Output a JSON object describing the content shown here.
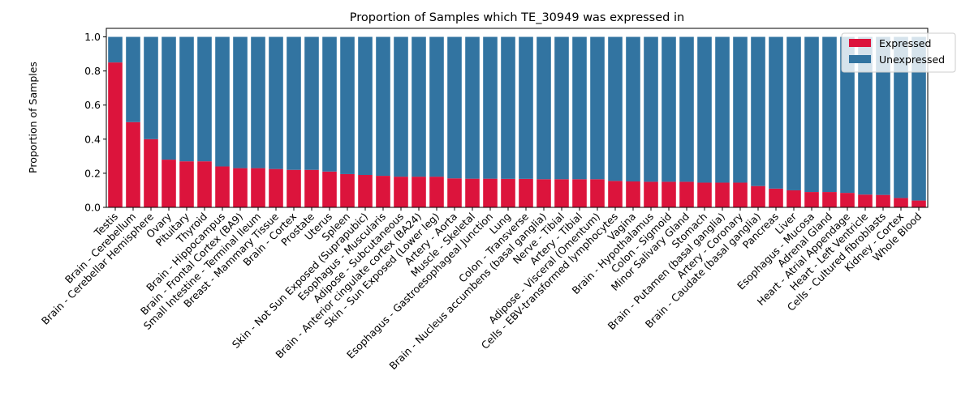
{
  "chart_data": {
    "type": "bar",
    "stacked": true,
    "title": "Proportion of Samples which TE_30949 was expressed in",
    "xlabel": "",
    "ylabel": "Proportion of Samples",
    "ylim": [
      0,
      1.05
    ],
    "yticks": [
      0.0,
      0.2,
      0.4,
      0.6,
      0.8,
      1.0
    ],
    "ytick_labels": [
      "0.0",
      "0.2",
      "0.4",
      "0.6",
      "0.8",
      "1.0"
    ],
    "grid": false,
    "legend_position": "top-right",
    "categories": [
      "Testis",
      "Brain - Cerebellum",
      "Brain - Cerebellar Hemisphere",
      "Ovary",
      "Pituitary",
      "Thyroid",
      "Brain - Hippocampus",
      "Brain - Frontal Cortex (BA9)",
      "Small Intestine - Terminal Ileum",
      "Breast - Mammary Tissue",
      "Brain - Cortex",
      "Prostate",
      "Uterus",
      "Spleen",
      "Skin - Not Sun Exposed (Suprapubic)",
      "Esophagus - Muscularis",
      "Adipose - Subcutaneous",
      "Brain - Anterior cingulate cortex (BA24)",
      "Skin - Sun Exposed (Lower leg)",
      "Artery - Aorta",
      "Muscle - Skeletal",
      "Esophagus - Gastroesophageal Junction",
      "Lung",
      "Colon - Transverse",
      "Brain - Nucleus accumbens (basal ganglia)",
      "Nerve - Tibial",
      "Artery - Tibial",
      "Adipose - Visceral (Omentum)",
      "Cells - EBV-transformed lymphocytes",
      "Vagina",
      "Brain - Hypothalamus",
      "Colon - Sigmoid",
      "Minor Salivary Gland",
      "Stomach",
      "Brain - Putamen (basal ganglia)",
      "Artery - Coronary",
      "Brain - Caudate (basal ganglia)",
      "Pancreas",
      "Liver",
      "Esophagus - Mucosa",
      "Adrenal Gland",
      "Heart - Atrial Appendage",
      "Heart - Left Ventricle",
      "Cells - Cultured fibroblasts",
      "Kidney - Cortex",
      "Whole Blood"
    ],
    "series": [
      {
        "name": "Expressed",
        "color": "#dc143c",
        "values": [
          0.85,
          0.5,
          0.4,
          0.28,
          0.27,
          0.27,
          0.24,
          0.23,
          0.23,
          0.225,
          0.22,
          0.22,
          0.21,
          0.195,
          0.19,
          0.185,
          0.18,
          0.18,
          0.18,
          0.17,
          0.168,
          0.168,
          0.167,
          0.167,
          0.165,
          0.165,
          0.165,
          0.165,
          0.155,
          0.152,
          0.15,
          0.15,
          0.15,
          0.145,
          0.145,
          0.145,
          0.125,
          0.11,
          0.1,
          0.09,
          0.09,
          0.085,
          0.075,
          0.073,
          0.055,
          0.04
        ]
      },
      {
        "name": "Unexpressed",
        "color": "#3274a1",
        "values": [
          0.15,
          0.5,
          0.6,
          0.72,
          0.73,
          0.73,
          0.76,
          0.77,
          0.77,
          0.775,
          0.78,
          0.78,
          0.79,
          0.805,
          0.81,
          0.815,
          0.82,
          0.82,
          0.82,
          0.83,
          0.832,
          0.832,
          0.833,
          0.833,
          0.835,
          0.835,
          0.835,
          0.835,
          0.845,
          0.848,
          0.85,
          0.85,
          0.85,
          0.855,
          0.855,
          0.855,
          0.875,
          0.89,
          0.9,
          0.91,
          0.91,
          0.915,
          0.925,
          0.927,
          0.945,
          0.96
        ]
      }
    ]
  }
}
